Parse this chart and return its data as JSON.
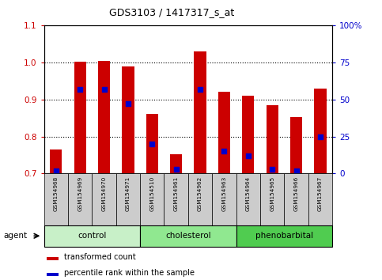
{
  "title": "GDS3103 / 1417317_s_at",
  "samples": [
    "GSM154968",
    "GSM154969",
    "GSM154970",
    "GSM154971",
    "GSM154510",
    "GSM154961",
    "GSM154962",
    "GSM154963",
    "GSM154964",
    "GSM154965",
    "GSM154966",
    "GSM154967"
  ],
  "transformed_count": [
    0.765,
    1.002,
    1.003,
    0.988,
    0.86,
    0.752,
    1.03,
    0.92,
    0.91,
    0.885,
    0.853,
    0.93
  ],
  "percentile_rank_pct": [
    2,
    57,
    57,
    47,
    20,
    3,
    57,
    15,
    12,
    3,
    2,
    25
  ],
  "ylim": [
    0.7,
    1.1
  ],
  "yticks_left": [
    0.7,
    0.8,
    0.9,
    1.0,
    1.1
  ],
  "right_yticks": [
    0,
    25,
    50,
    75,
    100
  ],
  "right_ylim": [
    0,
    100
  ],
  "groups": [
    {
      "label": "control",
      "indices": [
        0,
        1,
        2,
        3
      ],
      "color": "#c8f0c8"
    },
    {
      "label": "cholesterol",
      "indices": [
        4,
        5,
        6,
        7
      ],
      "color": "#90e890"
    },
    {
      "label": "phenobarbital",
      "indices": [
        8,
        9,
        10,
        11
      ],
      "color": "#50cc50"
    }
  ],
  "bar_color": "#cc0000",
  "dot_color": "#0000cc",
  "bar_width": 0.5,
  "agent_label": "agent",
  "legend_items": [
    {
      "label": "transformed count",
      "color": "#cc0000"
    },
    {
      "label": "percentile rank within the sample",
      "color": "#0000cc"
    }
  ],
  "fig_width": 4.83,
  "fig_height": 3.54,
  "dpi": 100
}
